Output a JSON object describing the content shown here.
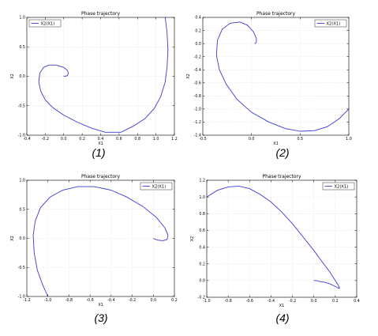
{
  "chart_data": [
    {
      "type": "line",
      "title": "Phase trajectory",
      "xlabel": "X1",
      "ylabel": "X2",
      "legend": "X2(X1)",
      "legend_position": "top-left",
      "caption": "(1)",
      "xlim": [
        -0.4,
        1.2
      ],
      "ylim": [
        -1.0,
        1.0
      ],
      "xticks": [
        -0.4,
        -0.2,
        0.0,
        0.2,
        0.4,
        0.6,
        0.8,
        1.0,
        1.2
      ],
      "xtick_labels": [
        "-0.4",
        "-0.2",
        "0.0",
        "0.2",
        "0.4",
        "0.6",
        "0.8",
        "1.0",
        "1.2"
      ],
      "yticks": [
        -1.0,
        -0.5,
        0.0,
        0.5,
        1.0
      ],
      "ytick_labels": [
        "-1.0",
        "-0.5",
        "0.0",
        "0.5",
        "1.0"
      ],
      "grid": true,
      "series": [
        {
          "name": "X2(X1)",
          "x": [
            1.1,
            1.12,
            1.13,
            1.12,
            1.1,
            1.05,
            0.98,
            0.88,
            0.75,
            0.62,
            0.45,
            0.3,
            0.15,
            0.0,
            -0.12,
            -0.2,
            -0.25,
            -0.27,
            -0.26,
            -0.22,
            -0.16,
            -0.08,
            0.0,
            0.04,
            0.05,
            0.04,
            0.01,
            0.0
          ],
          "y": [
            1.0,
            0.75,
            0.45,
            0.15,
            -0.1,
            -0.35,
            -0.55,
            -0.72,
            -0.85,
            -0.95,
            -0.95,
            -0.88,
            -0.78,
            -0.66,
            -0.53,
            -0.4,
            -0.25,
            -0.1,
            0.05,
            0.15,
            0.19,
            0.19,
            0.15,
            0.1,
            0.05,
            0.01,
            0.0,
            0.0
          ]
        }
      ]
    },
    {
      "type": "line",
      "title": "Phase trajectory",
      "xlabel": "X1",
      "ylabel": "X2",
      "legend": "X2(X1)",
      "legend_position": "top-right",
      "caption": "(2)",
      "xlim": [
        -0.5,
        1.0
      ],
      "ylim": [
        -1.4,
        0.4
      ],
      "xticks": [
        -0.5,
        0.0,
        0.5,
        1.0
      ],
      "xtick_labels": [
        "-0.5",
        "0.0",
        "0.5",
        "1.0"
      ],
      "yticks": [
        -1.4,
        -1.2,
        -1.0,
        -0.8,
        -0.6,
        -0.4,
        -0.2,
        0.0,
        0.2,
        0.4
      ],
      "ytick_labels": [
        "-1.4",
        "-1.2",
        "-1.0",
        "-0.8",
        "-0.6",
        "-0.4",
        "-0.2",
        "0.0",
        "0.2",
        "0.4"
      ],
      "grid": true,
      "series": [
        {
          "name": "X2(X1)",
          "x": [
            1.0,
            0.9,
            0.78,
            0.65,
            0.5,
            0.35,
            0.18,
            0.0,
            -0.15,
            -0.26,
            -0.33,
            -0.36,
            -0.35,
            -0.3,
            -0.22,
            -0.12,
            -0.04,
            0.02,
            0.05,
            0.05,
            0.04,
            0.03
          ],
          "y": [
            -1.0,
            -1.15,
            -1.27,
            -1.33,
            -1.34,
            -1.3,
            -1.2,
            -1.05,
            -0.85,
            -0.62,
            -0.4,
            -0.18,
            0.05,
            0.22,
            0.31,
            0.33,
            0.28,
            0.18,
            0.08,
            0.02,
            0.0,
            0.0
          ]
        }
      ]
    },
    {
      "type": "line",
      "title": "Phase trajectory",
      "xlabel": "X1",
      "ylabel": "X2",
      "legend": "X2(X1)",
      "legend_position": "top-right",
      "caption": "(3)",
      "xlim": [
        -1.2,
        0.2
      ],
      "ylim": [
        -1.0,
        1.0
      ],
      "xticks": [
        -1.2,
        -1.0,
        -0.8,
        -0.6,
        -0.4,
        -0.2,
        0.0,
        0.2
      ],
      "xtick_labels": [
        "-1.2",
        "-1.0",
        "-0.8",
        "-0.6",
        "-0.4",
        "-0.2",
        "0.0",
        "0.2"
      ],
      "yticks": [
        -1.0,
        -0.5,
        0.0,
        0.5,
        1.0
      ],
      "ytick_labels": [
        "-1.0",
        "-0.5",
        "0.0",
        "0.5",
        "1.0"
      ],
      "grid": true,
      "series": [
        {
          "name": "X2(X1)",
          "x": [
            -1.0,
            -1.05,
            -1.1,
            -1.13,
            -1.14,
            -1.12,
            -1.07,
            -0.98,
            -0.86,
            -0.72,
            -0.56,
            -0.4,
            -0.25,
            -0.1,
            0.03,
            0.11,
            0.14,
            0.13,
            0.09,
            0.04,
            0.01,
            0.0
          ],
          "y": [
            -1.0,
            -0.8,
            -0.55,
            -0.25,
            0.05,
            0.3,
            0.53,
            0.71,
            0.83,
            0.89,
            0.89,
            0.83,
            0.71,
            0.55,
            0.36,
            0.18,
            0.05,
            -0.02,
            -0.04,
            -0.03,
            -0.01,
            0.0
          ]
        }
      ]
    },
    {
      "type": "line",
      "title": "Phase trajectory",
      "xlabel": "X1",
      "ylabel": "X2",
      "legend": "X2(X1)",
      "legend_position": "top-right",
      "caption": "(4)",
      "xlim": [
        -1.0,
        0.4
      ],
      "ylim": [
        -0.2,
        1.2
      ],
      "xticks": [
        -1.0,
        -0.8,
        -0.6,
        -0.4,
        -0.2,
        0.0,
        0.2,
        0.4
      ],
      "xtick_labels": [
        "-1.0",
        "-0.8",
        "-0.6",
        "-0.4",
        "-0.2",
        "0.0",
        "0.2",
        "0.4"
      ],
      "yticks": [
        -0.2,
        0.0,
        0.2,
        0.4,
        0.6,
        0.8,
        1.0,
        1.2
      ],
      "ytick_labels": [
        "-0.2",
        "0.0",
        "0.2",
        "0.4",
        "0.6",
        "0.8",
        "1.0",
        "1.2"
      ],
      "grid": true,
      "series": [
        {
          "name": "X2(X1)",
          "x": [
            -1.0,
            -0.9,
            -0.8,
            -0.7,
            -0.6,
            -0.5,
            -0.4,
            -0.3,
            -0.2,
            -0.1,
            0.0,
            0.08,
            0.15,
            0.2,
            0.23,
            0.24,
            0.23,
            0.2,
            0.15,
            0.1,
            0.05,
            0.02,
            0.0
          ],
          "y": [
            1.0,
            1.08,
            1.12,
            1.13,
            1.1,
            1.03,
            0.94,
            0.82,
            0.68,
            0.52,
            0.36,
            0.22,
            0.1,
            0.0,
            -0.06,
            -0.09,
            -0.09,
            -0.07,
            -0.04,
            -0.02,
            -0.01,
            0.0,
            0.0
          ]
        }
      ]
    }
  ]
}
